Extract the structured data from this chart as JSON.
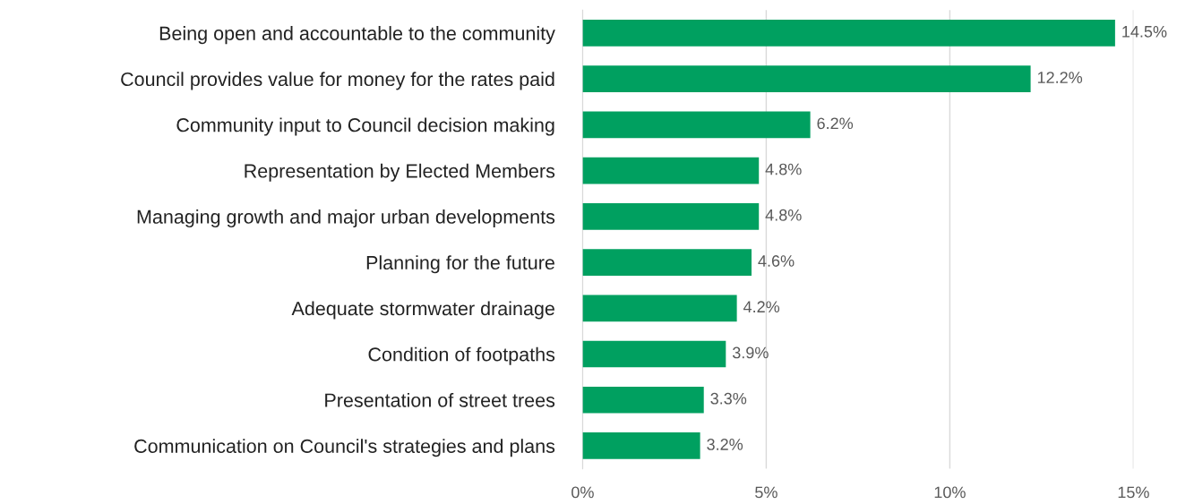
{
  "chart_data": {
    "type": "bar",
    "orientation": "horizontal",
    "categories": [
      "Being open and accountable to the community",
      "Council provides value for money for the rates paid",
      "Community input to Council decision making",
      "Representation by Elected Members",
      "Managing growth and major urban developments",
      "Planning for the future",
      "Adequate stormwater drainage",
      "Condition of footpaths",
      "Presentation of street trees",
      "Communication on Council's strategies and plans"
    ],
    "values": [
      14.5,
      12.2,
      6.2,
      4.8,
      4.8,
      4.6,
      4.2,
      3.9,
      3.3,
      3.2
    ],
    "value_labels": [
      "14.5%",
      "12.2%",
      "6.2%",
      "4.8%",
      "4.8%",
      "4.6%",
      "4.2%",
      "3.9%",
      "3.3%",
      "3.2%"
    ],
    "color": "#00a060",
    "xlim": [
      0,
      15
    ],
    "xticks": [
      {
        "value": 0,
        "label": "0%"
      },
      {
        "value": 5,
        "label": "5%"
      },
      {
        "value": 10,
        "label": "10%"
      },
      {
        "value": 15,
        "label": "15%"
      }
    ],
    "grid": "x"
  }
}
